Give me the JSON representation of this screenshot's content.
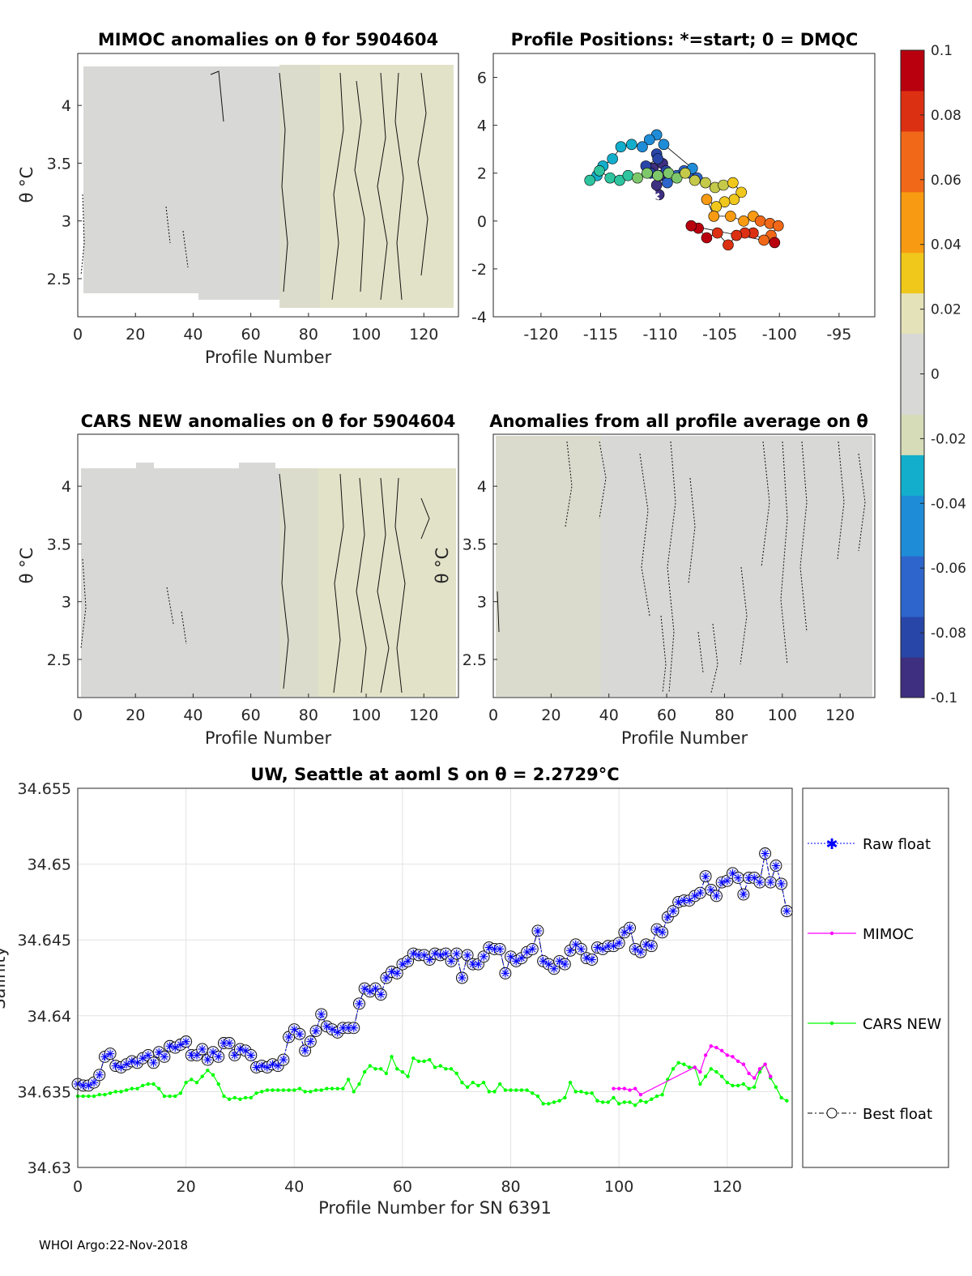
{
  "float_id": "5904604",
  "footer": "WHOI Argo:22-Nov-2018",
  "panel_mimoc": {
    "title": "MIMOC anomalies on θ  for 5904604",
    "xlabel": "Profile Number",
    "ylabel": "θ °C",
    "xticks": [
      0,
      20,
      40,
      60,
      80,
      100,
      120
    ],
    "yticks": [
      "2.5",
      "3",
      "3.5",
      "4"
    ]
  },
  "panel_positions": {
    "title": "Profile Positions: *=start; 0 = DMQC",
    "xticks": [
      "-120",
      "-115",
      "-110",
      "-105",
      "-100",
      "-95"
    ],
    "yticks": [
      "-4",
      "-2",
      "0",
      "2",
      "4",
      "6"
    ]
  },
  "panel_cars": {
    "title": "CARS NEW anomalies on θ for 5904604",
    "xlabel": "Profile Number",
    "ylabel": "θ °C",
    "xticks": [
      0,
      20,
      40,
      60,
      80,
      100,
      120
    ],
    "yticks": [
      "2.5",
      "3",
      "3.5",
      "4"
    ]
  },
  "panel_allavg": {
    "title": "Anomalies from all profile average on θ",
    "xlabel": "Profile Number",
    "ylabel": "θ °C",
    "xticks": [
      0,
      20,
      40,
      60,
      80,
      100,
      120
    ],
    "yticks": [
      "2.5",
      "3",
      "3.5",
      "4"
    ]
  },
  "colorbar": {
    "ticks": [
      "0.1",
      "0.08",
      "0.06",
      "0.04",
      "0.02",
      "0",
      "-0.02",
      "-0.04",
      "-0.06",
      "-0.08",
      "-0.1"
    ],
    "colors": [
      "#3e2f80",
      "#2846a8",
      "#2d65cc",
      "#1f8cd8",
      "#13aecc",
      "#2ec49f",
      "#7ec86b",
      "#c4c94a",
      "#f0c81c",
      "#f89b12",
      "#f06818",
      "#dc3012",
      "#b8000f"
    ]
  },
  "chart_data": {
    "type": "line",
    "title": "UW, Seattle at aoml S on θ = 2.2729°C",
    "xlabel": "Profile Number for SN 6391",
    "ylabel": "Salinity",
    "xlim": [
      0,
      132
    ],
    "ylim": [
      34.63,
      34.655
    ],
    "xticks": [
      "0",
      "20",
      "40",
      "60",
      "80",
      "100",
      "120"
    ],
    "yticks": [
      "34.63",
      "34.635",
      "34.64",
      "34.645",
      "34.65",
      "34.655"
    ],
    "grid": true,
    "legend_position": "outside-right",
    "series": [
      {
        "name": "Raw float",
        "color": "#0000ff",
        "x": [
          0,
          1,
          2,
          3,
          4,
          5,
          6,
          7,
          8,
          9,
          10,
          11,
          12,
          13,
          14,
          15,
          16,
          17,
          18,
          19,
          20,
          21,
          22,
          23,
          24,
          25,
          26,
          27,
          28,
          29,
          30,
          31,
          32,
          33,
          34,
          35,
          36,
          37,
          38,
          39,
          40,
          41,
          42,
          43,
          44,
          45,
          46,
          47,
          48,
          49,
          50,
          51,
          52,
          53,
          54,
          55,
          56,
          57,
          58,
          59,
          60,
          61,
          62,
          63,
          64,
          65,
          66,
          67,
          68,
          69,
          70,
          71,
          72,
          73,
          74,
          75,
          76,
          77,
          78,
          79,
          80,
          81,
          82,
          83,
          84,
          85,
          86,
          87,
          88,
          89,
          90,
          91,
          92,
          93,
          94,
          95,
          96,
          97,
          98,
          99,
          100,
          101,
          102,
          103,
          104,
          105,
          106,
          107,
          108,
          109,
          110,
          111,
          112,
          113,
          114,
          115,
          116,
          117,
          118,
          119,
          120,
          121,
          122,
          123,
          124,
          125,
          126,
          127,
          128,
          129,
          130,
          131
        ],
        "values": [
          34.6355,
          34.6354,
          34.6354,
          34.6356,
          34.6361,
          34.6373,
          34.6375,
          34.6367,
          34.6366,
          34.6368,
          34.637,
          34.6369,
          34.6372,
          34.6374,
          34.6369,
          34.6376,
          34.6373,
          34.638,
          34.6379,
          34.6381,
          34.6383,
          34.6374,
          34.6374,
          34.6378,
          34.6371,
          34.6376,
          34.6373,
          34.6382,
          34.6382,
          34.6374,
          34.6378,
          34.6377,
          34.6374,
          34.6366,
          34.6367,
          34.6366,
          34.6368,
          34.6367,
          34.6371,
          34.6386,
          34.6391,
          34.6388,
          34.6377,
          34.6383,
          34.639,
          34.6401,
          34.6393,
          34.6391,
          34.6389,
          34.6392,
          34.6392,
          34.6392,
          34.6408,
          34.6418,
          34.6416,
          34.6418,
          34.6414,
          34.6425,
          34.6429,
          34.6428,
          34.6434,
          34.6436,
          34.6441,
          34.644,
          34.644,
          34.6437,
          34.6441,
          34.644,
          34.6441,
          34.6436,
          34.6441,
          34.6425,
          34.644,
          34.6434,
          34.6434,
          34.6439,
          34.6445,
          34.6444,
          34.6444,
          34.6428,
          34.6439,
          34.6436,
          34.6438,
          34.6442,
          34.6444,
          34.6456,
          34.6436,
          34.6434,
          34.6431,
          34.6436,
          34.6434,
          34.6443,
          34.6447,
          34.6444,
          34.6438,
          34.6437,
          34.6445,
          34.6444,
          34.6446,
          34.6446,
          34.6448,
          34.6455,
          34.6458,
          34.6444,
          34.6442,
          34.6447,
          34.6446,
          34.6457,
          34.6455,
          34.6465,
          34.6469,
          34.6475,
          34.6476,
          34.6476,
          34.6479,
          34.6481,
          34.6492,
          34.6483,
          34.6479,
          34.6488,
          34.6489,
          34.6494,
          34.6491,
          34.648,
          34.6491,
          34.6491,
          34.6488,
          34.6507,
          34.6488,
          34.6499,
          34.6487,
          34.6469
        ]
      },
      {
        "name": "MIMOC",
        "color": "#ff00ff",
        "x": [
          99,
          100,
          101,
          102,
          103,
          104,
          114,
          115,
          116,
          117,
          118,
          119,
          120,
          121,
          122,
          123,
          124,
          125,
          126,
          127,
          128
        ],
        "values": [
          34.6352,
          34.6352,
          34.6352,
          34.6351,
          34.6352,
          34.6348,
          34.6366,
          34.6363,
          34.6374,
          34.638,
          34.6379,
          34.6377,
          34.6374,
          34.6373,
          34.637,
          34.6368,
          34.6362,
          34.6359,
          34.6365,
          34.6368,
          34.636
        ]
      },
      {
        "name": "CARS NEW",
        "color": "#00ff00",
        "x": [
          0,
          1,
          2,
          3,
          4,
          5,
          6,
          7,
          8,
          9,
          10,
          11,
          12,
          13,
          14,
          15,
          16,
          17,
          18,
          19,
          20,
          21,
          22,
          23,
          24,
          25,
          26,
          27,
          28,
          29,
          30,
          31,
          32,
          33,
          34,
          35,
          36,
          37,
          38,
          39,
          40,
          41,
          42,
          43,
          44,
          45,
          46,
          47,
          48,
          49,
          50,
          51,
          52,
          53,
          54,
          55,
          56,
          57,
          58,
          59,
          60,
          61,
          62,
          63,
          64,
          65,
          66,
          67,
          68,
          69,
          70,
          71,
          72,
          73,
          74,
          75,
          76,
          77,
          78,
          79,
          80,
          81,
          82,
          83,
          84,
          85,
          86,
          87,
          88,
          89,
          90,
          91,
          92,
          93,
          94,
          95,
          96,
          97,
          98,
          99,
          100,
          101,
          102,
          103,
          104,
          105,
          106,
          107,
          108,
          109,
          110,
          111,
          112,
          113,
          114,
          115,
          116,
          117,
          118,
          119,
          120,
          121,
          122,
          123,
          124,
          125,
          126,
          127,
          128,
          129,
          130,
          131
        ],
        "values": [
          34.6347,
          34.6347,
          34.6347,
          34.6347,
          34.6348,
          34.6348,
          34.6349,
          34.635,
          34.635,
          34.6351,
          34.6352,
          34.6352,
          34.6354,
          34.6355,
          34.6355,
          34.6352,
          34.6347,
          34.6347,
          34.6347,
          34.6349,
          34.6356,
          34.6358,
          34.6356,
          34.636,
          34.6364,
          34.6361,
          34.6355,
          34.6347,
          34.6345,
          34.6346,
          34.6345,
          34.6346,
          34.6346,
          34.6349,
          34.635,
          34.6351,
          34.6351,
          34.6351,
          34.6351,
          34.6351,
          34.6351,
          34.6352,
          34.635,
          34.635,
          34.6351,
          34.6351,
          34.6352,
          34.6352,
          34.6352,
          34.6352,
          34.6358,
          34.635,
          34.6355,
          34.6363,
          34.6367,
          34.6365,
          34.6365,
          34.6362,
          34.6373,
          34.6365,
          34.6363,
          34.636,
          34.6372,
          34.637,
          34.637,
          34.6371,
          34.6366,
          34.6367,
          34.6365,
          34.6365,
          34.6362,
          34.6356,
          34.6353,
          34.6356,
          34.6354,
          34.6356,
          34.635,
          34.635,
          34.6355,
          34.6351,
          34.6351,
          34.6351,
          34.6351,
          34.6351,
          34.6349,
          34.6347,
          34.6342,
          34.6342,
          34.6343,
          34.6344,
          34.6346,
          34.6356,
          34.635,
          34.635,
          34.6349,
          34.6349,
          34.6344,
          34.6343,
          34.6343,
          34.6346,
          34.6342,
          34.6343,
          34.6343,
          34.6341,
          34.6344,
          34.6343,
          34.6345,
          34.6347,
          34.6348,
          34.6358,
          34.6365,
          34.6369,
          34.6368,
          34.6366,
          34.6366,
          34.6355,
          34.636,
          34.6365,
          34.6363,
          34.636,
          34.6356,
          34.6354,
          34.6354,
          34.6355,
          34.6352,
          34.6353,
          34.6363,
          34.6368,
          34.6359,
          34.6353,
          34.6346,
          34.6344
        ]
      },
      {
        "name": "Best float",
        "color": "#000000",
        "x": [
          0,
          1,
          2,
          3,
          4,
          5,
          6,
          7,
          8,
          9,
          10,
          11,
          12,
          13,
          14,
          15,
          16,
          17,
          18,
          19,
          20,
          21,
          22,
          23,
          24,
          25,
          26,
          27,
          28,
          29,
          30,
          31,
          32,
          33,
          34,
          35,
          36,
          37,
          38,
          39,
          40,
          41,
          42,
          43,
          44,
          45,
          46,
          47,
          48,
          49,
          50,
          51,
          52,
          53,
          54,
          55,
          56,
          57,
          58,
          59,
          60,
          61,
          62,
          63,
          64,
          65,
          66,
          67,
          68,
          69,
          70,
          71,
          72,
          73,
          74,
          75,
          76,
          77,
          78,
          79,
          80,
          81,
          82,
          83,
          84,
          85,
          86,
          87,
          88,
          89,
          90,
          91,
          92,
          93,
          94,
          95,
          96,
          97,
          98,
          99,
          100,
          101,
          102,
          103,
          104,
          105,
          106,
          107,
          108,
          109,
          110,
          111,
          112,
          113,
          114,
          115,
          116,
          117,
          118,
          119,
          120,
          121,
          122,
          123,
          124,
          125,
          126,
          127,
          128,
          129,
          130,
          131
        ],
        "values": [
          34.6355,
          34.6354,
          34.6354,
          34.6356,
          34.6361,
          34.6373,
          34.6375,
          34.6367,
          34.6366,
          34.6368,
          34.637,
          34.6369,
          34.6372,
          34.6374,
          34.6369,
          34.6376,
          34.6373,
          34.638,
          34.6379,
          34.6381,
          34.6383,
          34.6374,
          34.6374,
          34.6378,
          34.6371,
          34.6376,
          34.6373,
          34.6382,
          34.6382,
          34.6374,
          34.6378,
          34.6377,
          34.6374,
          34.6366,
          34.6367,
          34.6366,
          34.6368,
          34.6367,
          34.6371,
          34.6386,
          34.6391,
          34.6388,
          34.6377,
          34.6383,
          34.639,
          34.6401,
          34.6393,
          34.6391,
          34.6389,
          34.6392,
          34.6392,
          34.6392,
          34.6408,
          34.6418,
          34.6416,
          34.6418,
          34.6414,
          34.6425,
          34.6429,
          34.6428,
          34.6434,
          34.6436,
          34.6441,
          34.644,
          34.644,
          34.6437,
          34.6441,
          34.644,
          34.6441,
          34.6436,
          34.6441,
          34.6425,
          34.644,
          34.6434,
          34.6434,
          34.6439,
          34.6445,
          34.6444,
          34.6444,
          34.6428,
          34.6439,
          34.6436,
          34.6438,
          34.6442,
          34.6444,
          34.6456,
          34.6436,
          34.6434,
          34.6431,
          34.6436,
          34.6434,
          34.6443,
          34.6447,
          34.6444,
          34.6438,
          34.6437,
          34.6445,
          34.6444,
          34.6446,
          34.6446,
          34.6448,
          34.6455,
          34.6458,
          34.6444,
          34.6442,
          34.6447,
          34.6446,
          34.6457,
          34.6455,
          34.6465,
          34.6469,
          34.6475,
          34.6476,
          34.6476,
          34.6479,
          34.6481,
          34.6492,
          34.6483,
          34.6479,
          34.6488,
          34.6489,
          34.6494,
          34.6491,
          34.648,
          34.6491,
          34.6491,
          34.6488,
          34.6507,
          34.6488,
          34.6499,
          34.6487,
          34.6469
        ]
      }
    ]
  }
}
